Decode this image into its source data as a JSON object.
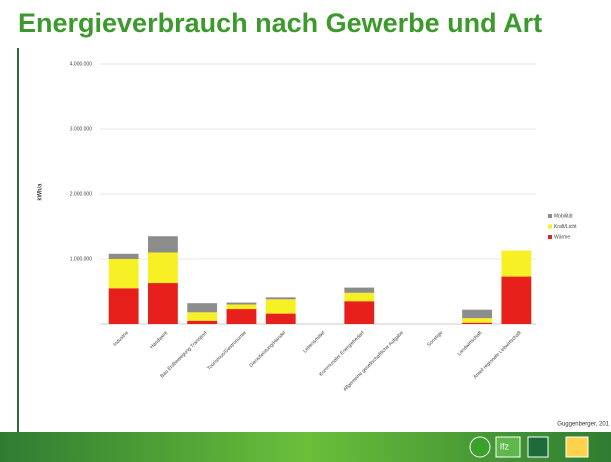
{
  "chart_data": {
    "type": "stacked_bar",
    "title": "Energieverbrauch nach Gewerbe und Art",
    "y_label": "kWh/a",
    "categories": [
      "Industrie",
      "Handwerk",
      "Bau Erdbewegung Transport",
      "Tourismus/Gastronomie",
      "Dienstleistung/Handel",
      "Lebensmittel",
      "Kommunaler Energiebedarf",
      "Allgemeine gesellschaftliche Aufgabe",
      "Sonstige",
      "Landwirtschaft",
      "Anteil regionale Leitwirtschaft"
    ],
    "series": [
      {
        "name": "Wärme",
        "color": "#e8201c",
        "values": [
          550000,
          630000,
          50000,
          230000,
          160000,
          0,
          350000,
          0,
          0,
          20000,
          730000
        ]
      },
      {
        "name": "Kraft/Licht",
        "color": "#f7f024",
        "values": [
          450000,
          470000,
          130000,
          70000,
          220000,
          0,
          130000,
          0,
          0,
          70000,
          400000
        ]
      },
      {
        "name": "Mobilität",
        "color": "#8c8c8c",
        "values": [
          80000,
          250000,
          140000,
          30000,
          30000,
          0,
          80000,
          0,
          0,
          130000,
          0
        ]
      }
    ],
    "ylim": [
      0,
      4000000
    ],
    "yticks": [
      {
        "value": 1000000,
        "label": "1.000.000"
      },
      {
        "value": 2000000,
        "label": "2.000.000"
      },
      {
        "value": 3000000,
        "label": "3.000.000"
      },
      {
        "value": 4000000,
        "label": "4.000.000"
      }
    ],
    "grid": true
  },
  "footer": {
    "credit": "Guggenberger, 201",
    "logo_text": "lfz"
  }
}
